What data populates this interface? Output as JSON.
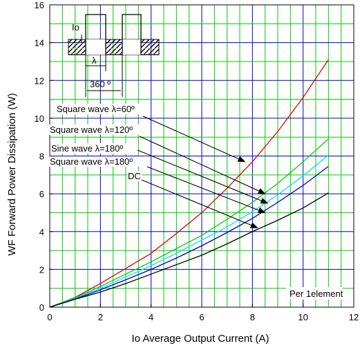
{
  "chart_data": {
    "type": "line",
    "xlabel": "Io   Average Output Current   (A)",
    "ylabel": "WF   Forward Power Dissipation   (W)",
    "xlim": [
      0,
      12
    ],
    "ylim": [
      0,
      16
    ],
    "x_ticks": [
      "0",
      "2",
      "4",
      "6",
      "8",
      "10",
      "12"
    ],
    "y_ticks": [
      "0",
      "2",
      "4",
      "6",
      "8",
      "10",
      "12",
      "14",
      "16"
    ],
    "grid": true,
    "grid_color": "#00cc00",
    "series": [
      {
        "name": "Square wave λ=60°",
        "color": "#e00000",
        "x": [
          0,
          1,
          2,
          3,
          4,
          5,
          6,
          7,
          8,
          9,
          10,
          11
        ],
        "y": [
          0,
          0.52,
          1.25,
          2.05,
          2.85,
          3.9,
          5.0,
          6.3,
          7.7,
          9.3,
          11.1,
          13.1
        ]
      },
      {
        "name": "Square wave λ=120°",
        "color": "#00cc00",
        "x": [
          0,
          1,
          2,
          3,
          4,
          5,
          6,
          7,
          8,
          9,
          10,
          11
        ],
        "y": [
          0,
          0.5,
          1.1,
          1.75,
          2.4,
          3.1,
          3.8,
          4.65,
          5.55,
          6.55,
          7.7,
          8.9
        ]
      },
      {
        "name": "Sine wave λ=180°",
        "color": "#00e0ff",
        "x": [
          0,
          1,
          2,
          3,
          4,
          5,
          6,
          7,
          8,
          9,
          10,
          11
        ],
        "y": [
          0,
          0.47,
          1.0,
          1.6,
          2.2,
          2.85,
          3.55,
          4.25,
          5.05,
          5.95,
          6.95,
          8.05
        ]
      },
      {
        "name": "Square wave λ=180°",
        "color": "#0000cc",
        "x": [
          0,
          1,
          2,
          3,
          4,
          5,
          6,
          7,
          8,
          9,
          10,
          11
        ],
        "y": [
          0,
          0.43,
          0.92,
          1.45,
          2.0,
          2.6,
          3.25,
          3.95,
          4.7,
          5.55,
          6.45,
          7.45
        ]
      },
      {
        "name": "DC",
        "color": "#000000",
        "x": [
          0,
          1,
          2,
          3,
          4,
          5,
          6,
          7,
          8,
          9,
          10,
          11
        ],
        "y": [
          0,
          0.42,
          0.8,
          1.25,
          1.75,
          2.25,
          2.75,
          3.35,
          4.0,
          4.6,
          5.25,
          6.05
        ]
      }
    ],
    "annotations": [
      {
        "label": "Square wave λ=60º",
        "target": [
          7.7,
          7.7
        ]
      },
      {
        "label": "Square wave λ=120º",
        "target": [
          8.5,
          6.0
        ]
      },
      {
        "label": "Sine wave λ=180º",
        "target": [
          8.6,
          5.5
        ]
      },
      {
        "label": "Square wave λ=180º",
        "target": [
          8.5,
          5.0
        ]
      },
      {
        "label": "DC",
        "target": [
          8.2,
          4.2
        ]
      }
    ],
    "note": "Per 1element",
    "inset": {
      "io_label": "Io",
      "lambda_label": "λ",
      "period_label": "360 º"
    }
  }
}
